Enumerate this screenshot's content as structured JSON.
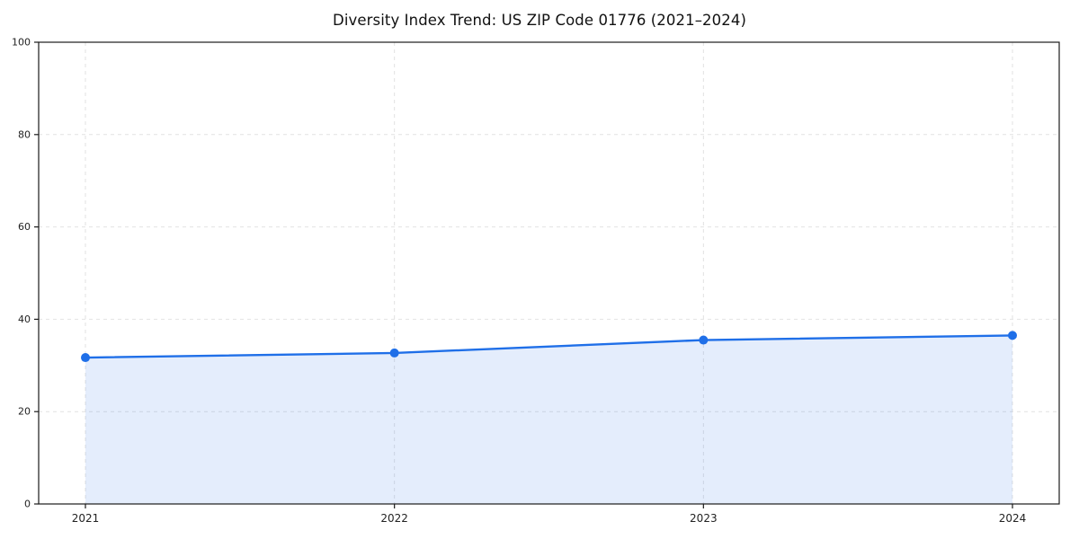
{
  "title": "Diversity Index Trend: US ZIP Code 01776 (2021–2024)",
  "chart_data": {
    "type": "line",
    "title": "Diversity Index Trend: US ZIP Code 01776 (2021–2024)",
    "x": [
      "2021",
      "2022",
      "2023",
      "2024"
    ],
    "series": [
      {
        "name": "Diversity Index",
        "values": [
          31.7,
          32.7,
          35.5,
          36.5
        ]
      }
    ],
    "xlabel": "",
    "ylabel": "",
    "ylim": [
      0,
      100
    ],
    "yticks": [
      0,
      20,
      40,
      60,
      80,
      100
    ],
    "grid": "dashed",
    "legend": "none",
    "line_color": "#1f6fe8",
    "fill_color": "rgba(31, 111, 232, 0.12)",
    "marker": "circle",
    "axis_color": "#1a1a1a",
    "grid_color": "#e2e2e2",
    "tick_label_color": "#222222"
  }
}
